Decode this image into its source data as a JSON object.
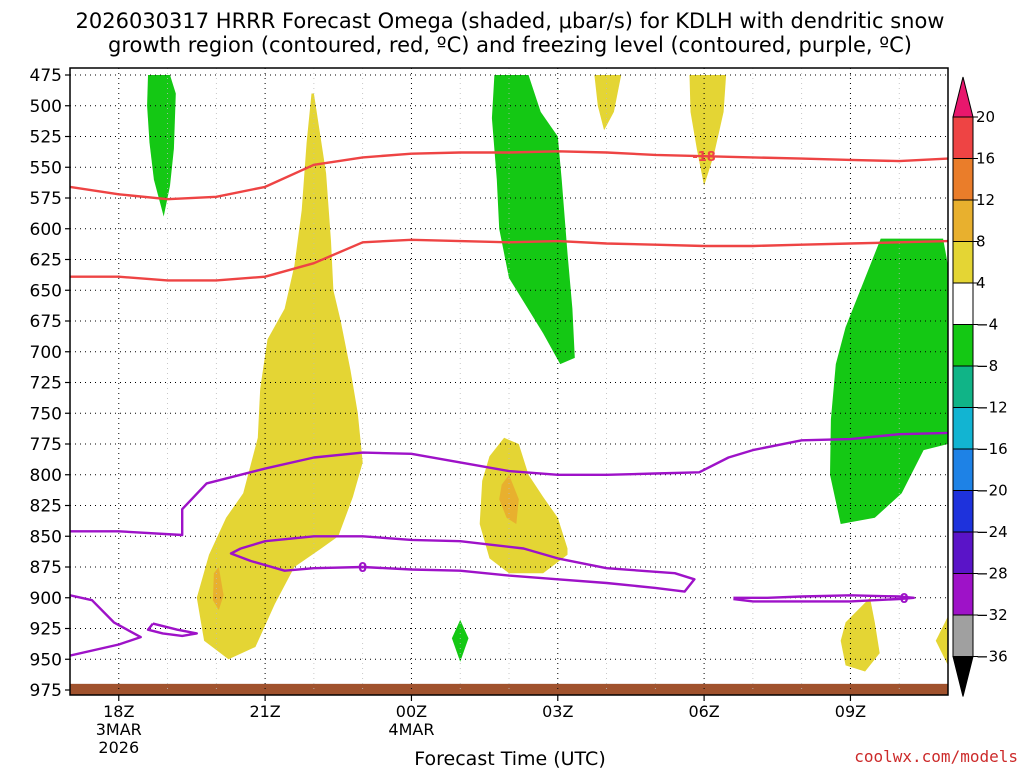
{
  "title_line1": "2026030317 HRRR Forecast Omega (shaded, μbar/s) for KDLH with dendritic snow",
  "title_line2": "growth region (contoured, red, ºC) and freezing level (contoured, purple, ºC)",
  "credit": "coolwx.com/models",
  "chart_data": {
    "type": "heatmap",
    "subtype": "time-height cross section",
    "title": "2026030317 HRRR Forecast Omega (shaded, μbar/s) for KDLH with dendritic snow growth region (contoured, red, ºC) and freezing level (contoured, purple, ºC)",
    "xlabel": "Forecast Time (UTC)",
    "ylabel": "",
    "x_range_hours_from_17Z": [
      0,
      18
    ],
    "y_range_mb": [
      975,
      475
    ],
    "y_ticks": [
      475,
      500,
      525,
      550,
      575,
      600,
      625,
      650,
      675,
      700,
      725,
      750,
      775,
      800,
      825,
      850,
      875,
      900,
      925,
      950,
      975
    ],
    "x_ticks": [
      {
        "hour": 1,
        "label": "18Z",
        "date1": "3MAR",
        "date2": "2026"
      },
      {
        "hour": 4,
        "label": "21Z",
        "date1": "",
        "date2": ""
      },
      {
        "hour": 7,
        "label": "00Z",
        "date1": "4MAR",
        "date2": ""
      },
      {
        "hour": 10,
        "label": "03Z",
        "date1": "",
        "date2": ""
      },
      {
        "hour": 13,
        "label": "06Z",
        "date1": "",
        "date2": ""
      },
      {
        "hour": 16,
        "label": "09Z",
        "date1": "",
        "date2": ""
      }
    ],
    "colorbar": {
      "labels": [
        "20",
        "16",
        "12",
        "8",
        "4",
        "−4",
        "−8",
        "−12",
        "−16",
        "−20",
        "−24",
        "−28",
        "−32",
        "−36"
      ],
      "colors": [
        "#e8176d",
        "#ee4444",
        "#ea7d2a",
        "#e8b02e",
        "#e4d534",
        "#ffffff",
        "#14c814",
        "#10b487",
        "#12b4d2",
        "#1e82e6",
        "#1e32dc",
        "#5a14c8",
        "#9e12c8",
        "#a0a0a0",
        "#000000"
      ],
      "units": "μbar/s"
    },
    "shaded_regions": [
      {
        "name": "ascent-1720Z-upper",
        "omega_class": "-4 to -8",
        "color": "#14c814",
        "points": [
          [
            1.6,
            475
          ],
          [
            2.05,
            475
          ],
          [
            2.17,
            490
          ],
          [
            2.13,
            535
          ],
          [
            2.05,
            565
          ],
          [
            1.92,
            590
          ],
          [
            1.72,
            560
          ],
          [
            1.63,
            530
          ],
          [
            1.58,
            500
          ]
        ]
      },
      {
        "name": "ascent-0230Z",
        "omega_class": "-4 to -8",
        "color": "#14c814",
        "points": [
          [
            8.7,
            475
          ],
          [
            9.4,
            475
          ],
          [
            9.65,
            505
          ],
          [
            10.0,
            525
          ],
          [
            10.08,
            560
          ],
          [
            10.2,
            620
          ],
          [
            10.3,
            665
          ],
          [
            10.35,
            705
          ],
          [
            10.05,
            710
          ],
          [
            9.7,
            685
          ],
          [
            9.0,
            640
          ],
          [
            8.8,
            600
          ],
          [
            8.75,
            560
          ],
          [
            8.65,
            510
          ]
        ]
      },
      {
        "name": "ascent-0930Z",
        "omega_class": "-4 to -8",
        "color": "#14c814",
        "points": [
          [
            15.6,
            755
          ],
          [
            15.7,
            710
          ],
          [
            15.9,
            680
          ],
          [
            16.3,
            640
          ],
          [
            16.62,
            608
          ],
          [
            17.9,
            608
          ],
          [
            18.0,
            630
          ],
          [
            18.0,
            775
          ],
          [
            17.5,
            780
          ],
          [
            17.05,
            815
          ],
          [
            16.5,
            835
          ],
          [
            15.8,
            840
          ],
          [
            15.58,
            800
          ]
        ]
      },
      {
        "name": "ascent-0130Z-spot",
        "omega_class": "-4 to -8",
        "color": "#14c814",
        "points": [
          [
            8.0,
            918
          ],
          [
            8.17,
            933
          ],
          [
            8.0,
            952
          ],
          [
            7.83,
            933
          ]
        ]
      },
      {
        "name": "descent-2130Z-plume",
        "omega_class": "4 to 8",
        "color": "#e4d534",
        "points": [
          [
            5.0,
            490
          ],
          [
            5.25,
            555
          ],
          [
            5.35,
            610
          ],
          [
            5.4,
            650
          ],
          [
            5.55,
            675
          ],
          [
            5.75,
            715
          ],
          [
            5.9,
            750
          ],
          [
            6.0,
            790
          ],
          [
            5.8,
            818
          ],
          [
            5.5,
            850
          ],
          [
            5.15,
            860
          ],
          [
            4.6,
            875
          ],
          [
            4.2,
            905
          ],
          [
            3.8,
            940
          ],
          [
            3.25,
            950
          ],
          [
            2.75,
            935
          ],
          [
            2.6,
            900
          ],
          [
            2.85,
            865
          ],
          [
            3.2,
            835
          ],
          [
            3.55,
            815
          ],
          [
            3.85,
            770
          ],
          [
            3.9,
            730
          ],
          [
            4.05,
            690
          ],
          [
            4.4,
            665
          ],
          [
            4.6,
            630
          ],
          [
            4.75,
            585
          ],
          [
            4.85,
            530
          ],
          [
            4.95,
            490
          ]
        ]
      },
      {
        "name": "descent-0200Z",
        "omega_class": "4 to 8",
        "color": "#e4d534",
        "points": [
          [
            8.6,
            785
          ],
          [
            8.9,
            770
          ],
          [
            9.2,
            775
          ],
          [
            9.4,
            800
          ],
          [
            9.7,
            818
          ],
          [
            10.0,
            835
          ],
          [
            10.2,
            860
          ],
          [
            10.2,
            865
          ],
          [
            9.7,
            880
          ],
          [
            9.0,
            880
          ],
          [
            8.6,
            868
          ],
          [
            8.4,
            840
          ],
          [
            8.45,
            805
          ]
        ]
      },
      {
        "name": "descent-0330Z-top",
        "omega_class": "4 to 8",
        "color": "#e4d534",
        "points": [
          [
            10.75,
            475
          ],
          [
            11.3,
            475
          ],
          [
            11.15,
            505
          ],
          [
            10.95,
            520
          ],
          [
            10.82,
            500
          ]
        ]
      },
      {
        "name": "descent-0600Z-top",
        "omega_class": "4 to 8",
        "color": "#e4d534",
        "points": [
          [
            12.7,
            475
          ],
          [
            13.45,
            475
          ],
          [
            13.4,
            505
          ],
          [
            13.2,
            540
          ],
          [
            13.0,
            565
          ],
          [
            12.85,
            535
          ],
          [
            12.72,
            505
          ]
        ]
      },
      {
        "name": "descent-0930Z-low",
        "omega_class": "4 to 8",
        "color": "#e4d534",
        "points": [
          [
            15.9,
            920
          ],
          [
            16.4,
            900
          ],
          [
            16.5,
            920
          ],
          [
            16.6,
            945
          ],
          [
            16.3,
            960
          ],
          [
            15.9,
            955
          ],
          [
            15.8,
            935
          ]
        ]
      },
      {
        "name": "descent-1100Z-low",
        "omega_class": "4 to 8",
        "color": "#e4d534",
        "points": [
          [
            18.0,
            915
          ],
          [
            17.75,
            935
          ],
          [
            18.0,
            955
          ]
        ]
      },
      {
        "name": "descent-1830Z-core",
        "omega_class": "8 to 12",
        "color": "#e8b02e",
        "points": [
          [
            2.95,
            880
          ],
          [
            3.05,
            875
          ],
          [
            3.15,
            898
          ],
          [
            3.05,
            910
          ],
          [
            2.93,
            902
          ]
        ]
      },
      {
        "name": "descent-0200Z-core",
        "omega_class": "8 to 12",
        "color": "#e8b02e",
        "points": [
          [
            8.85,
            808
          ],
          [
            9.0,
            800
          ],
          [
            9.2,
            820
          ],
          [
            9.15,
            840
          ],
          [
            8.95,
            835
          ],
          [
            8.8,
            820
          ]
        ]
      }
    ],
    "contours": [
      {
        "name": "dgz-minus18",
        "variable": "temperature",
        "value": -18,
        "label": "-18",
        "label_at": [
          13.0,
          541
        ],
        "color": "#ee4444",
        "points": [
          [
            0.0,
            566
          ],
          [
            1.0,
            572
          ],
          [
            2.0,
            576
          ],
          [
            3.0,
            574
          ],
          [
            4.0,
            566
          ],
          [
            5.0,
            548
          ],
          [
            6.0,
            542
          ],
          [
            7.0,
            539
          ],
          [
            8.0,
            538
          ],
          [
            9.0,
            538
          ],
          [
            10.0,
            537
          ],
          [
            11.0,
            538
          ],
          [
            12.0,
            540
          ],
          [
            13.0,
            541
          ],
          [
            14.0,
            542
          ],
          [
            15.0,
            543
          ],
          [
            16.0,
            544
          ],
          [
            17.0,
            545
          ],
          [
            18.0,
            543
          ]
        ]
      },
      {
        "name": "dgz-lower",
        "variable": "temperature",
        "value": -12,
        "label": "",
        "color": "#ee4444",
        "points": [
          [
            0.0,
            639
          ],
          [
            1.0,
            639
          ],
          [
            2.0,
            642
          ],
          [
            3.0,
            642
          ],
          [
            4.0,
            639
          ],
          [
            5.0,
            628
          ],
          [
            6.0,
            611
          ],
          [
            7.0,
            609
          ],
          [
            8.0,
            610
          ],
          [
            9.0,
            611
          ],
          [
            10.0,
            610
          ],
          [
            11.0,
            612
          ],
          [
            12.0,
            613
          ],
          [
            13.0,
            614
          ],
          [
            14.0,
            614
          ],
          [
            15.0,
            613
          ],
          [
            16.0,
            612
          ],
          [
            17.0,
            611
          ],
          [
            18.0,
            610
          ]
        ]
      },
      {
        "name": "freezing-level-main",
        "variable": "temperature",
        "value": 0,
        "label": "",
        "color": "#9e12c8",
        "points": [
          [
            0.0,
            947
          ],
          [
            1.0,
            938
          ],
          [
            1.45,
            932
          ],
          [
            0.9,
            920
          ],
          [
            0.45,
            902
          ],
          [
            0.0,
            898
          ]
        ]
      },
      {
        "name": "freezing-level-upper",
        "variable": "temperature",
        "value": 0,
        "label": "",
        "color": "#9e12c8",
        "points": [
          [
            0.0,
            846
          ],
          [
            1.0,
            846
          ],
          [
            2.3,
            849
          ],
          [
            2.3,
            828
          ],
          [
            2.8,
            807
          ],
          [
            4.0,
            795
          ],
          [
            5.0,
            786
          ],
          [
            6.0,
            782
          ],
          [
            7.0,
            783
          ],
          [
            8.0,
            790
          ],
          [
            9.0,
            797
          ],
          [
            10.0,
            800
          ],
          [
            11.0,
            800
          ],
          [
            12.0,
            799
          ],
          [
            12.9,
            798
          ],
          [
            13.5,
            786
          ],
          [
            14.0,
            780
          ],
          [
            15.0,
            772
          ],
          [
            16.0,
            771
          ],
          [
            17.0,
            767
          ],
          [
            18.0,
            766
          ]
        ]
      },
      {
        "name": "freezing-level-inner",
        "variable": "temperature",
        "value": 0,
        "label": "0",
        "label_at": [
          6.0,
          875
        ],
        "color": "#9e12c8",
        "points": [
          [
            3.5,
            860
          ],
          [
            3.3,
            864
          ],
          [
            3.7,
            870
          ],
          [
            4.4,
            878
          ],
          [
            5.0,
            876
          ],
          [
            6.0,
            875
          ],
          [
            7.0,
            877
          ],
          [
            8.0,
            878
          ],
          [
            9.0,
            882
          ],
          [
            10.0,
            885
          ],
          [
            11.0,
            888
          ],
          [
            12.0,
            892
          ],
          [
            12.6,
            895
          ],
          [
            12.8,
            885
          ],
          [
            12.4,
            880
          ],
          [
            11.0,
            876
          ],
          [
            10.0,
            868
          ],
          [
            9.3,
            860
          ],
          [
            8.0,
            854
          ],
          [
            7.0,
            853
          ],
          [
            6.0,
            850
          ],
          [
            5.0,
            850
          ],
          [
            4.0,
            854
          ],
          [
            3.5,
            860
          ]
        ]
      },
      {
        "name": "freezing-level-small",
        "variable": "temperature",
        "value": 0,
        "label": "",
        "color": "#9e12c8",
        "points": [
          [
            1.7,
            921
          ],
          [
            2.2,
            926
          ],
          [
            2.6,
            929
          ],
          [
            2.3,
            931
          ],
          [
            1.9,
            929
          ],
          [
            1.6,
            926
          ],
          [
            1.7,
            921
          ]
        ]
      },
      {
        "name": "freezing-level-right",
        "variable": "temperature",
        "value": 0,
        "label": "0",
        "label_at": [
          17.1,
          900
        ],
        "color": "#9e12c8",
        "points": [
          [
            13.6,
            900
          ],
          [
            14.3,
            900
          ],
          [
            15.0,
            899
          ],
          [
            16.0,
            898
          ],
          [
            17.0,
            899
          ],
          [
            17.3,
            900
          ],
          [
            17.0,
            901
          ],
          [
            16.0,
            903
          ],
          [
            15.0,
            903
          ],
          [
            14.0,
            903
          ],
          [
            13.6,
            901
          ]
        ]
      }
    ],
    "terrain": {
      "color": "#a0522d",
      "top_mb": 970
    }
  }
}
